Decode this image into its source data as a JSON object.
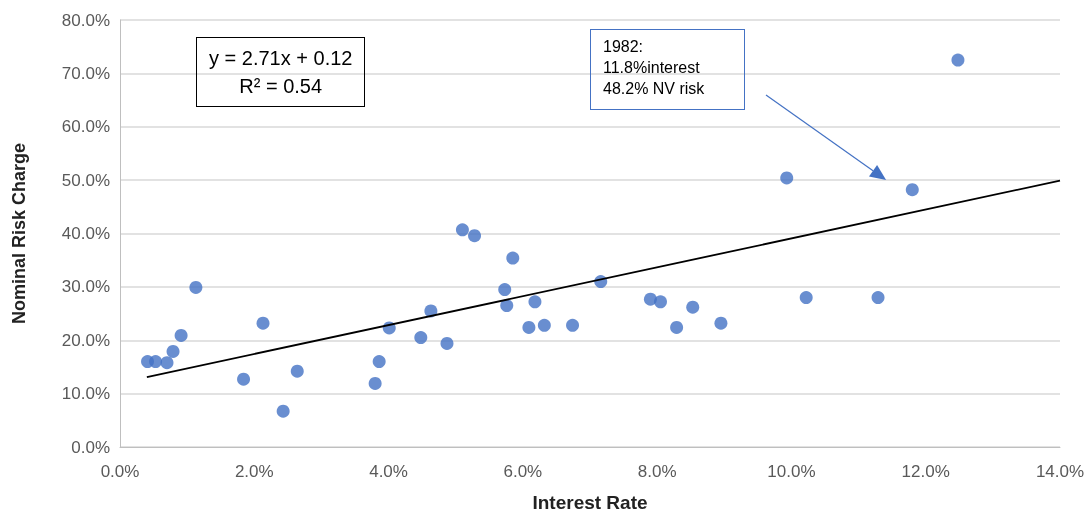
{
  "chart_data": {
    "type": "scatter",
    "xlabel": "Interest Rate",
    "ylabel": "Nominal Risk Charge",
    "xlim": [
      0,
      14
    ],
    "ylim": [
      0,
      80
    ],
    "xticks": [
      {
        "value": 0,
        "label": "0.0%"
      },
      {
        "value": 2,
        "label": "2.0%"
      },
      {
        "value": 4,
        "label": "4.0%"
      },
      {
        "value": 6,
        "label": "6.0%"
      },
      {
        "value": 8,
        "label": "8.0%"
      },
      {
        "value": 10,
        "label": "10.0%"
      },
      {
        "value": 12,
        "label": "12.0%"
      },
      {
        "value": 14,
        "label": "14.0%"
      }
    ],
    "yticks": [
      {
        "value": 0,
        "label": "0.0%"
      },
      {
        "value": 10,
        "label": "10.0%"
      },
      {
        "value": 20,
        "label": "20.0%"
      },
      {
        "value": 30,
        "label": "30.0%"
      },
      {
        "value": 40,
        "label": "40.0%"
      },
      {
        "value": 50,
        "label": "50.0%"
      },
      {
        "value": 60,
        "label": "60.0%"
      },
      {
        "value": 70,
        "label": "70.0%"
      },
      {
        "value": 80,
        "label": "80.0%"
      }
    ],
    "grid": "y",
    "series": [
      {
        "color": "#4472c4",
        "marker": "circle",
        "x": [
          0.41,
          0.53,
          0.7,
          0.79,
          0.91,
          1.13,
          2.13,
          1.84,
          2.43,
          2.64,
          3.8,
          3.86,
          4.01,
          4.48,
          4.63,
          4.87,
          5.1,
          5.28,
          5.85,
          5.73,
          5.76,
          6.18,
          6.09,
          6.32,
          6.74,
          7.16,
          7.9,
          8.05,
          8.29,
          8.53,
          8.95,
          9.93,
          10.22,
          11.29,
          11.8,
          12.48
        ],
        "values": [
          16.0,
          16.0,
          15.8,
          17.9,
          20.9,
          29.9,
          23.2,
          12.7,
          6.7,
          14.2,
          11.9,
          16.0,
          22.3,
          20.5,
          25.5,
          19.4,
          40.7,
          39.6,
          35.4,
          29.5,
          26.5,
          27.2,
          22.4,
          22.8,
          22.8,
          31.0,
          27.7,
          27.2,
          22.4,
          26.2,
          23.2,
          50.4,
          28.0,
          28.0,
          48.2,
          72.5
        ]
      },
      {
        "type": "line",
        "color": "#000000",
        "marker": "none",
        "x": [
          0.4,
          14
        ],
        "values": [
          13.1,
          49.9
        ]
      }
    ],
    "annotations": [
      "y = 2.71x + 0.12\nR² = 0.54",
      "1982:\n11.8%interest\n48.2% NV risk"
    ]
  }
}
